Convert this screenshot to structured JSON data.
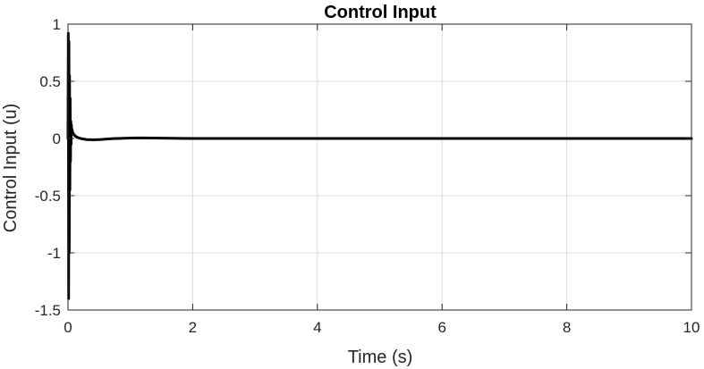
{
  "chart_data": {
    "type": "line",
    "title": "Control Input",
    "xlabel": "Time (s)",
    "ylabel": "Control Input (u)",
    "xlim": [
      0,
      10
    ],
    "ylim": [
      -1.5,
      1
    ],
    "xticks": [
      0,
      2,
      4,
      6,
      8,
      10
    ],
    "xtick_labels": [
      "0",
      "2",
      "4",
      "6",
      "8",
      "10"
    ],
    "yticks": [
      1,
      0.5,
      0,
      -0.5,
      -1,
      -1.5
    ],
    "ytick_labels": [
      "1",
      "0.5",
      "0",
      "-0.5",
      "-1",
      "-1.5"
    ],
    "grid": true,
    "line_color": "#000000",
    "series": [
      {
        "x": [
          0,
          0.005,
          0.01,
          0.015,
          0.02,
          0.025,
          0.03,
          0.035,
          0.04,
          0.045,
          0.05,
          0.055,
          0.06,
          0.065,
          0.07,
          0.08,
          0.09,
          0.1,
          0.12,
          0.15,
          0.2,
          0.3,
          0.4,
          0.5,
          0.6,
          0.7,
          0.8,
          1.0,
          1.2,
          1.5,
          1.8,
          2.0,
          2.5,
          3,
          4,
          5,
          6,
          7,
          8,
          9,
          10
        ],
        "y": [
          0,
          0.92,
          -1.4,
          0.85,
          -1.0,
          0.55,
          -0.45,
          0.35,
          -0.2,
          0.15,
          -0.05,
          0.12,
          0.04,
          0.08,
          0.06,
          0.05,
          0.04,
          0.03,
          0.02,
          0.01,
          0.0,
          -0.01,
          -0.012,
          -0.01,
          -0.006,
          -0.002,
          0.0,
          0.004,
          0.005,
          0.003,
          0.001,
          0.0,
          0.0,
          0.0,
          0.0,
          0.0,
          0.0,
          0.0,
          0.0,
          0.0,
          0.0
        ]
      }
    ]
  }
}
